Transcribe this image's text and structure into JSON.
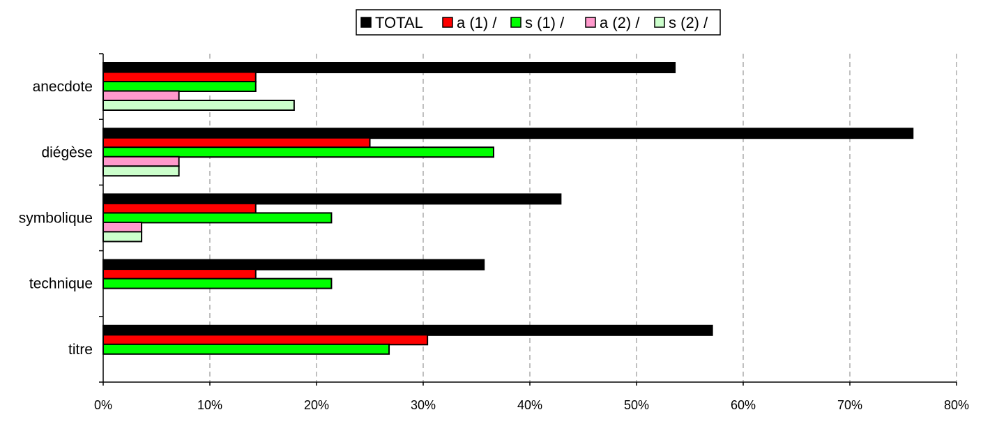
{
  "chart_data": {
    "type": "bar",
    "orientation": "horizontal",
    "categories": [
      "anecdote",
      "diégèse",
      "symbolique",
      "technique",
      "titre"
    ],
    "series": [
      {
        "name": "TOTAL",
        "color": "#000000",
        "values": [
          53.6,
          75.9,
          42.9,
          35.7,
          57.1
        ]
      },
      {
        "name": "a (1) /",
        "color": "#ff0000",
        "values": [
          14.3,
          25.0,
          14.3,
          14.3,
          30.4
        ]
      },
      {
        "name": "s (1) /",
        "color": "#00ff00",
        "values": [
          14.3,
          36.6,
          21.4,
          21.4,
          26.8
        ]
      },
      {
        "name": "a (2) /",
        "color": "#ff99cc",
        "values": [
          7.1,
          7.1,
          3.6,
          null,
          null
        ]
      },
      {
        "name": "s (2) /",
        "color": "#ccffcc",
        "values": [
          17.9,
          7.1,
          3.6,
          null,
          null
        ]
      }
    ],
    "xlim": [
      0,
      80
    ],
    "x_ticks": [
      "0%",
      "10%",
      "20%",
      "30%",
      "40%",
      "50%",
      "60%",
      "70%",
      "80%"
    ],
    "grid": "vertical dashed",
    "legend_position": "top"
  }
}
